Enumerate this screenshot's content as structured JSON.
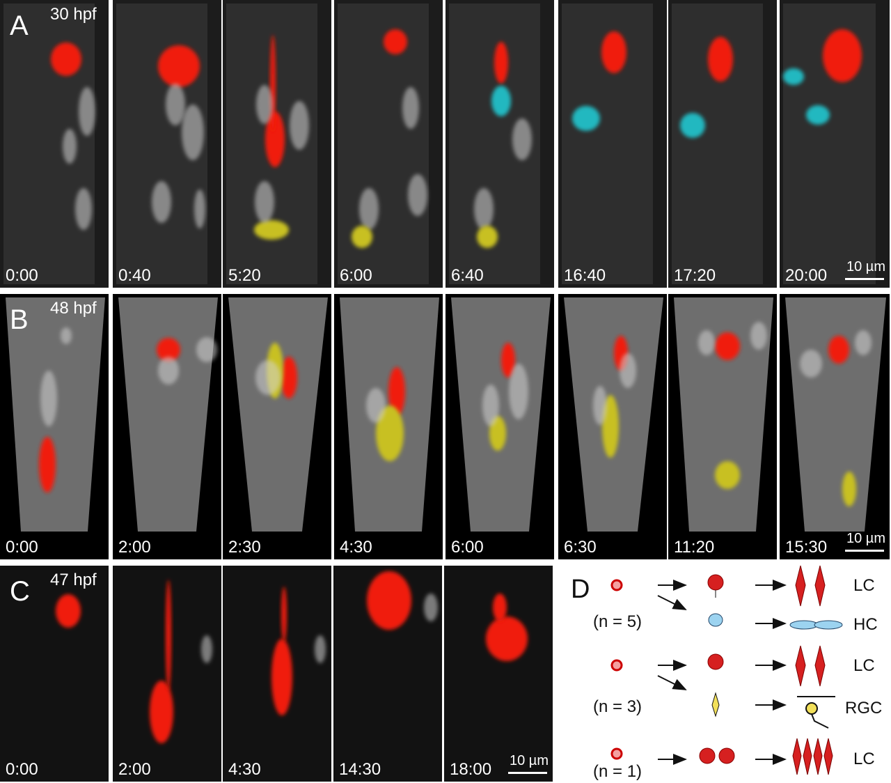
{
  "panels": [
    {
      "label": "A",
      "stage": "30 hpf",
      "times": [
        "0:00",
        "0:40",
        "5:20",
        "6:00",
        "6:40",
        "16:40",
        "17:20",
        "20:00"
      ],
      "scale_bar": "10 µm"
    },
    {
      "label": "B",
      "stage": "48 hpf",
      "times": [
        "0:00",
        "2:00",
        "2:30",
        "4:30",
        "6:00",
        "6:30",
        "11:20",
        "15:30"
      ],
      "scale_bar": "10 µm"
    },
    {
      "label": "C",
      "stage": "47 hpf",
      "times": [
        "0:00",
        "2:00",
        "4:30",
        "14:30",
        "18:00"
      ],
      "scale_bar": "10 µm"
    }
  ],
  "diagram": {
    "label": "D",
    "rows": [
      {
        "n": "(n = 5)",
        "outcomes": [
          "LC",
          "HC"
        ]
      },
      {
        "n": "(n = 3)",
        "outcomes": [
          "LC",
          "RGC"
        ]
      },
      {
        "n": "(n = 1)",
        "outcomes": [
          "LC"
        ]
      }
    ]
  }
}
